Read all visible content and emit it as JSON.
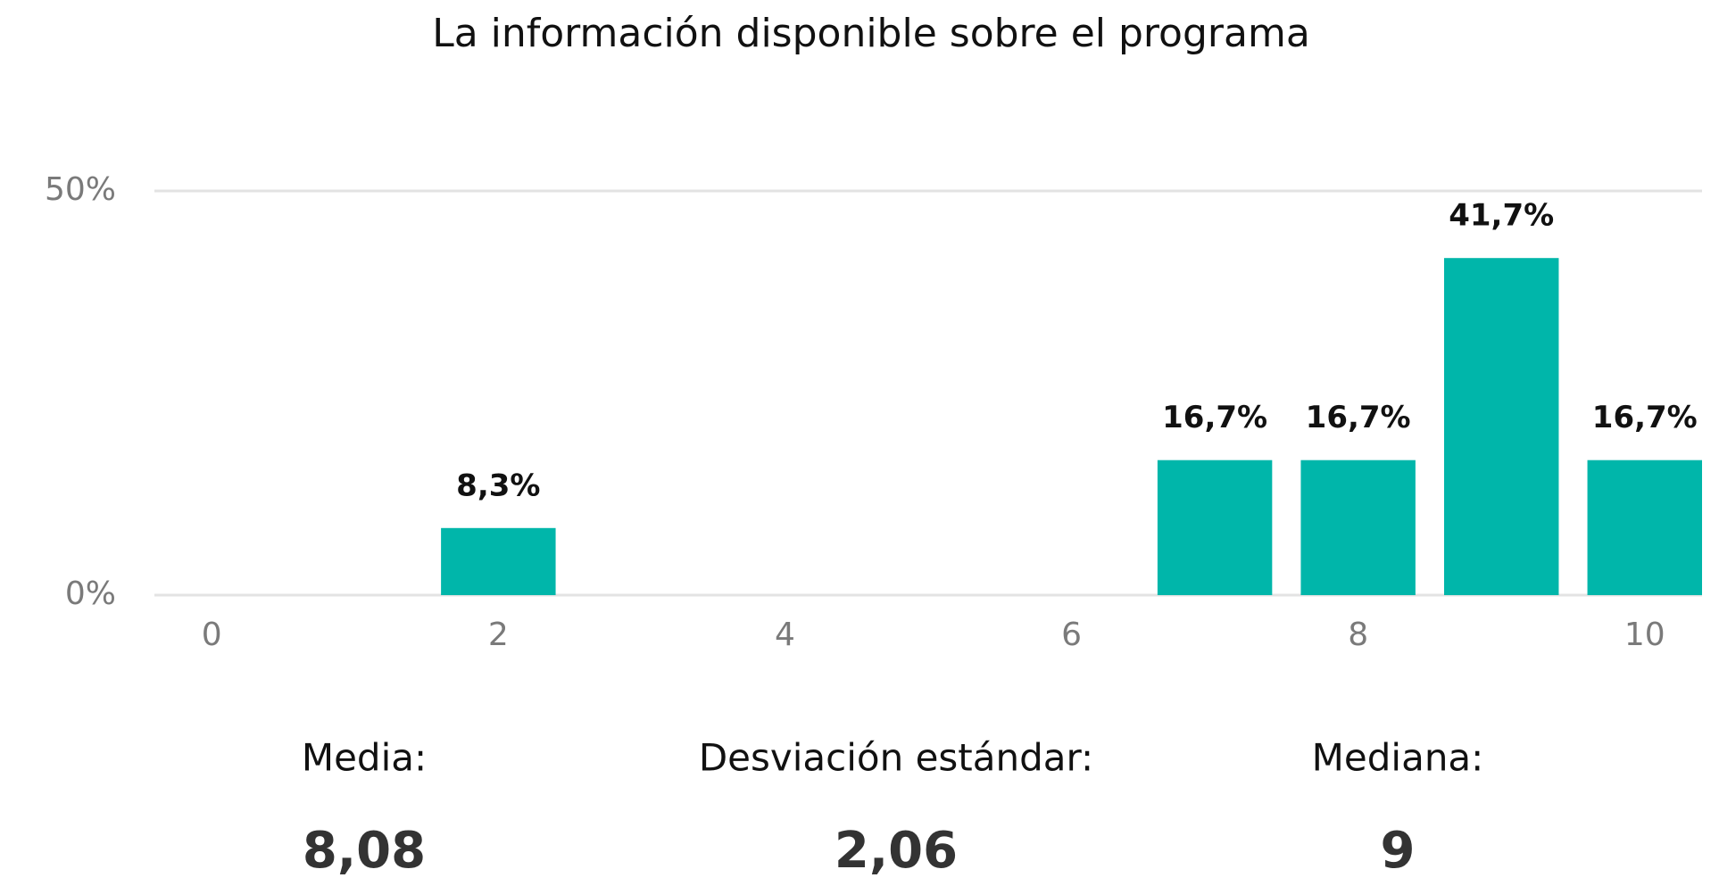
{
  "chart_data": {
    "type": "bar",
    "title": "La información disponible sobre el programa",
    "x": [
      2,
      7,
      8,
      9,
      10
    ],
    "values": [
      8.3,
      16.7,
      16.7,
      41.7,
      16.7
    ],
    "value_labels": [
      "8,3%",
      "16,7%",
      "16,7%",
      "41,7%",
      "16,7%"
    ],
    "color": "#00b6aa",
    "xlim": [
      -0.4,
      10.4
    ],
    "xticks": [
      0,
      2,
      4,
      6,
      8,
      10
    ],
    "ylim": [
      0,
      50
    ],
    "yticks": [
      {
        "value": 0,
        "label": "0%"
      },
      {
        "value": 50,
        "label": "50%"
      }
    ],
    "grid": true
  },
  "stats": [
    {
      "label": "Media:",
      "value": "8,08"
    },
    {
      "label": "Desviación estándar:",
      "value": "2,06"
    },
    {
      "label": "Mediana:",
      "value": "9"
    }
  ]
}
